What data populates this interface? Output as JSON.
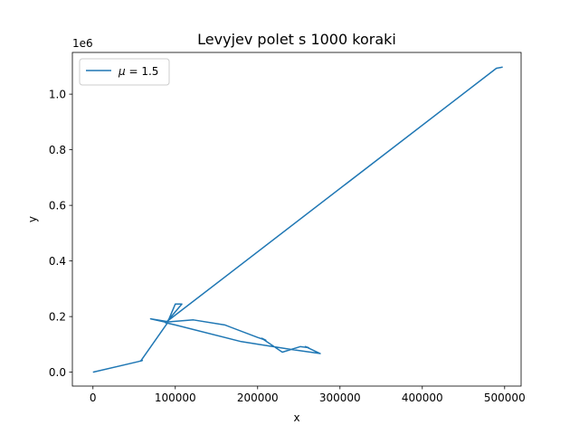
{
  "chart_data": {
    "type": "line",
    "title": "Levyjev polet s 1000 koraki",
    "xlabel": "x",
    "ylabel": "y",
    "y_offset_label": "1e6",
    "xlim": [
      -25000,
      520000
    ],
    "ylim": [
      -50000,
      1150000
    ],
    "x_ticks": [
      0,
      100000,
      200000,
      300000,
      400000,
      500000
    ],
    "x_tick_labels": [
      "0",
      "100000",
      "200000",
      "300000",
      "400000",
      "500000"
    ],
    "y_ticks": [
      0,
      200000,
      400000,
      600000,
      800000,
      1000000
    ],
    "y_tick_labels": [
      "0.0",
      "0.2",
      "0.4",
      "0.6",
      "0.8",
      "1.0"
    ],
    "grid": false,
    "legend_position": "top-left",
    "series": [
      {
        "name": "μ = 1.5",
        "legend_math_symbol": "μ",
        "legend_math_rest": " = 1.5",
        "color": "#1f77b4",
        "points": [
          [
            0,
            0
          ],
          [
            55000,
            38000
          ],
          [
            60000,
            42000
          ],
          [
            58000,
            40000
          ],
          [
            90000,
            175000
          ],
          [
            100000,
            245000
          ],
          [
            108000,
            245000
          ],
          [
            90000,
            182000
          ],
          [
            70000,
            192000
          ],
          [
            88000,
            180000
          ],
          [
            122000,
            188000
          ],
          [
            160000,
            170000
          ],
          [
            200000,
            125000
          ],
          [
            210000,
            115000
          ],
          [
            205000,
            122000
          ],
          [
            230000,
            72000
          ],
          [
            252000,
            92000
          ],
          [
            262000,
            88000
          ],
          [
            258000,
            92000
          ],
          [
            276000,
            67000
          ],
          [
            240000,
            82000
          ],
          [
            180000,
            110000
          ],
          [
            100000,
            170000
          ],
          [
            88000,
            178000
          ],
          [
            490000,
            1093000
          ],
          [
            497000,
            1097000
          ],
          [
            494000,
            1095000
          ]
        ]
      }
    ]
  }
}
